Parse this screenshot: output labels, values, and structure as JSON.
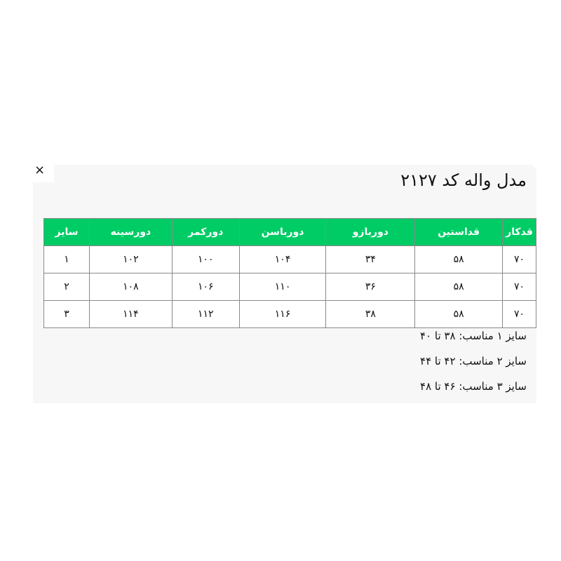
{
  "close_label": "×",
  "title": "مدل واله کد ۲۱۲۷",
  "table": {
    "headers": [
      "قدکار",
      "قداستین",
      "دوربازو",
      "دورباسن",
      "دورکمر",
      "دورسینه",
      "سایز"
    ],
    "rows": [
      [
        "۷۰",
        "۵۸",
        "۳۴",
        "۱۰۴",
        "۱۰۰",
        "۱۰۲",
        "۱"
      ],
      [
        "۷۰",
        "۵۸",
        "۳۶",
        "۱۱۰",
        "۱۰۶",
        "۱۰۸",
        "۲"
      ],
      [
        "۷۰",
        "۵۸",
        "۳۸",
        "۱۱۶",
        "۱۱۲",
        "۱۱۴",
        "۳"
      ]
    ]
  },
  "notes": [
    "سایز ۱ مناسب: ۳۸ تا ۴۰",
    "سایز ۲ مناسب: ۴۲ تا ۴۴",
    "سایز ۳ مناسب: ۴۶ تا ۴۸"
  ],
  "colors": {
    "header_bg": "#00cc66",
    "panel_bg": "#f7f7f7"
  }
}
